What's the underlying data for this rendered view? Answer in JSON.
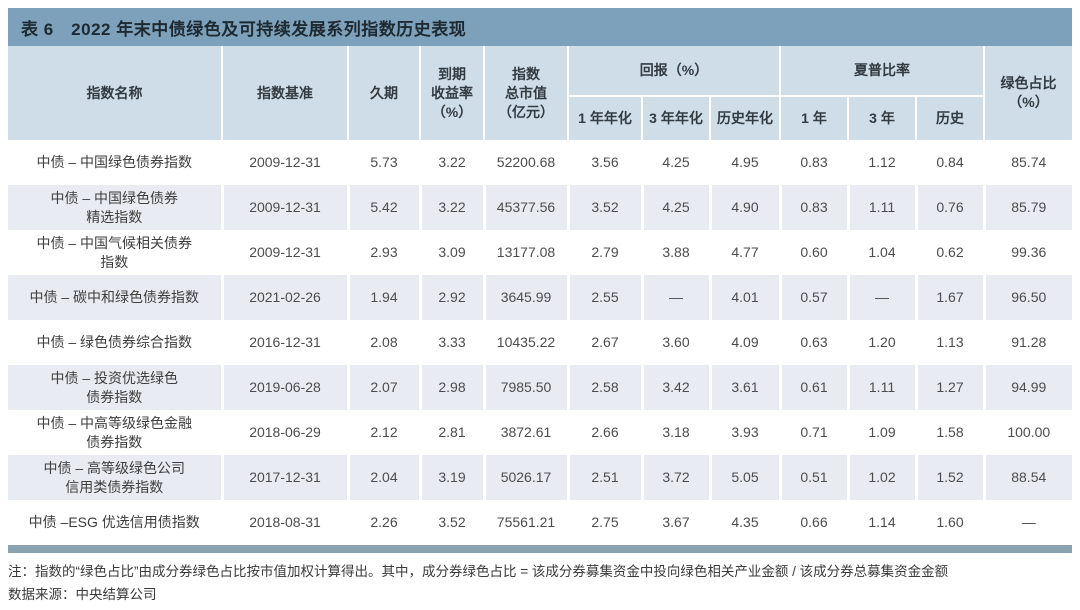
{
  "title": "表 6　2022 年末中债绿色及可持续发展系列指数历史表现",
  "colors": {
    "title_bar": "#7da1ba",
    "header_bg": "#cfdde8",
    "row_alt_bg": "#e8ecf2",
    "bottom_bar": "#8aa3b0"
  },
  "table": {
    "headers": {
      "name": "指数名称",
      "base": "指数基准",
      "duration": "久期",
      "ytm": "到期\n收益率\n（%）",
      "mv": "指数\n总市值\n（亿元）",
      "returns_group": "回报（%）",
      "r1": "1 年年化",
      "r3": "3 年年化",
      "rh": "历史年化",
      "sharpe_group": "夏普比率",
      "s1": "1 年",
      "s3": "3 年",
      "sh": "历史",
      "green": "绿色占比\n（%）"
    },
    "rows": [
      {
        "name1": "中债 – 中国绿色债券指数",
        "name2": "",
        "base": "2009-12-31",
        "dur": "5.73",
        "ytm": "3.22",
        "mv": "52200.68",
        "r1": "3.56",
        "r3": "4.25",
        "rh": "4.95",
        "s1": "0.83",
        "s3": "1.12",
        "sh": "0.84",
        "green": "85.74"
      },
      {
        "name1": "中债 – 中国绿色债券",
        "name2": "精选指数",
        "base": "2009-12-31",
        "dur": "5.42",
        "ytm": "3.22",
        "mv": "45377.56",
        "r1": "3.52",
        "r3": "4.25",
        "rh": "4.90",
        "s1": "0.83",
        "s3": "1.11",
        "sh": "0.76",
        "green": "85.79"
      },
      {
        "name1": "中债 – 中国气候相关债券",
        "name2": "指数",
        "base": "2009-12-31",
        "dur": "2.93",
        "ytm": "3.09",
        "mv": "13177.08",
        "r1": "2.79",
        "r3": "3.88",
        "rh": "4.77",
        "s1": "0.60",
        "s3": "1.04",
        "sh": "0.62",
        "green": "99.36"
      },
      {
        "name1": "中债 – 碳中和绿色债券指数",
        "name2": "",
        "base": "2021-02-26",
        "dur": "1.94",
        "ytm": "2.92",
        "mv": "3645.99",
        "r1": "2.55",
        "r3": "—",
        "rh": "4.01",
        "s1": "0.57",
        "s3": "—",
        "sh": "1.67",
        "green": "96.50"
      },
      {
        "name1": "中债 – 绿色债券综合指数",
        "name2": "",
        "base": "2016-12-31",
        "dur": "2.08",
        "ytm": "3.33",
        "mv": "10435.22",
        "r1": "2.67",
        "r3": "3.60",
        "rh": "4.09",
        "s1": "0.63",
        "s3": "1.20",
        "sh": "1.13",
        "green": "91.28"
      },
      {
        "name1": "中债 – 投资优选绿色",
        "name2": "债券指数",
        "base": "2019-06-28",
        "dur": "2.07",
        "ytm": "2.98",
        "mv": "7985.50",
        "r1": "2.58",
        "r3": "3.42",
        "rh": "3.61",
        "s1": "0.61",
        "s3": "1.11",
        "sh": "1.27",
        "green": "94.99"
      },
      {
        "name1": "中债 – 中高等级绿色金融",
        "name2": "债券指数",
        "base": "2018-06-29",
        "dur": "2.12",
        "ytm": "2.81",
        "mv": "3872.61",
        "r1": "2.66",
        "r3": "3.18",
        "rh": "3.93",
        "s1": "0.71",
        "s3": "1.09",
        "sh": "1.58",
        "green": "100.00"
      },
      {
        "name1": "中债 – 高等级绿色公司",
        "name2": "信用类债券指数",
        "base": "2017-12-31",
        "dur": "2.04",
        "ytm": "3.19",
        "mv": "5026.17",
        "r1": "2.51",
        "r3": "3.72",
        "rh": "5.05",
        "s1": "0.51",
        "s3": "1.02",
        "sh": "1.52",
        "green": "88.54"
      },
      {
        "name1": "中债 –ESG 优选信用债指数",
        "name2": "",
        "base": "2018-08-31",
        "dur": "2.26",
        "ytm": "3.52",
        "mv": "75561.21",
        "r1": "2.75",
        "r3": "3.67",
        "rh": "4.35",
        "s1": "0.66",
        "s3": "1.14",
        "sh": "1.60",
        "green": "—"
      }
    ]
  },
  "footnotes": {
    "note": "注：指数的“绿色占比”由成分券绿色占比按市值加权计算得出。其中，成分券绿色占比 = 该成分券募集资金中投向绿色相关产业金额 / 该成分券总募集资金金额",
    "source": "数据来源：中央结算公司"
  }
}
